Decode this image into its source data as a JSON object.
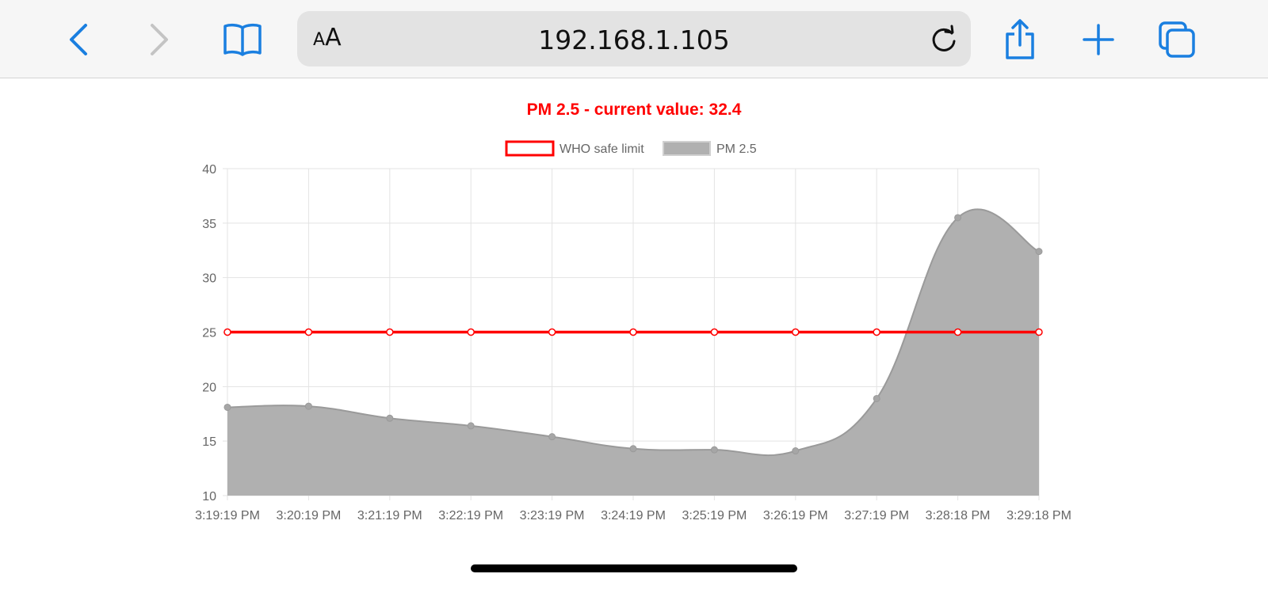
{
  "browser": {
    "url": "192.168.1.105",
    "text_size_label_small": "A",
    "text_size_label_large": "A",
    "icons": {
      "back": "chevron-left-icon",
      "forward": "chevron-right-icon",
      "bookmarks": "book-icon",
      "reload": "reload-icon",
      "share": "share-icon",
      "new_tab": "plus-icon",
      "tabs": "tabs-icon"
    },
    "accent_color": "#1a7fe0",
    "disabled_color": "#c4c4c4"
  },
  "chart_data": {
    "type": "line",
    "title": "PM 2.5 - current value: 32.4",
    "title_color": "#ff0000",
    "categories": [
      "3:19:19 PM",
      "3:20:19 PM",
      "3:21:19 PM",
      "3:22:19 PM",
      "3:23:19 PM",
      "3:24:19 PM",
      "3:25:19 PM",
      "3:26:19 PM",
      "3:27:19 PM",
      "3:28:18 PM",
      "3:29:18 PM"
    ],
    "series": [
      {
        "name": "WHO safe limit",
        "values": [
          25,
          25,
          25,
          25,
          25,
          25,
          25,
          25,
          25,
          25,
          25
        ],
        "color": "#ff0000",
        "fill": false
      },
      {
        "name": "PM 2.5",
        "values": [
          18.1,
          18.2,
          17.1,
          16.4,
          15.4,
          14.3,
          14.2,
          14.1,
          18.9,
          35.5,
          32.4
        ],
        "color": "#b0b0b0",
        "fill": true
      }
    ],
    "ylim": [
      10,
      40
    ],
    "yticks": [
      10,
      15,
      20,
      25,
      30,
      35,
      40
    ],
    "grid": true,
    "legend_position": "top-center"
  }
}
